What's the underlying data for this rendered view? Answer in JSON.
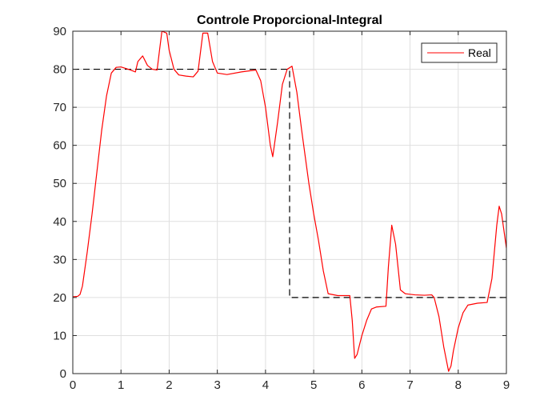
{
  "chart_data": {
    "type": "line",
    "title": "Controle Proporcional-Integral",
    "xlabel": "",
    "ylabel": "",
    "xlim": [
      0,
      9
    ],
    "ylim": [
      0,
      90
    ],
    "xticks": [
      0,
      1,
      2,
      3,
      4,
      5,
      6,
      7,
      8,
      9
    ],
    "yticks": [
      0,
      10,
      20,
      30,
      40,
      50,
      60,
      70,
      80,
      90
    ],
    "grid": true,
    "legend_position": "top-right",
    "series": [
      {
        "name": "Real",
        "color": "#ff0000",
        "style": "solid",
        "points": [
          [
            0,
            20.2
          ],
          [
            0.1,
            20.3
          ],
          [
            0.15,
            20.8
          ],
          [
            0.2,
            23
          ],
          [
            0.3,
            32
          ],
          [
            0.4,
            42
          ],
          [
            0.5,
            53
          ],
          [
            0.6,
            64
          ],
          [
            0.7,
            73
          ],
          [
            0.8,
            79
          ],
          [
            0.9,
            80.5
          ],
          [
            1.0,
            80.6
          ],
          [
            1.1,
            80.2
          ],
          [
            1.2,
            79.8
          ],
          [
            1.3,
            79.3
          ],
          [
            1.35,
            82
          ],
          [
            1.45,
            83.5
          ],
          [
            1.55,
            81
          ],
          [
            1.65,
            80
          ],
          [
            1.75,
            79.8
          ],
          [
            1.8,
            85
          ],
          [
            1.85,
            90
          ],
          [
            1.95,
            89.5
          ],
          [
            2.0,
            85
          ],
          [
            2.1,
            80
          ],
          [
            2.2,
            78.5
          ],
          [
            2.35,
            78.2
          ],
          [
            2.5,
            78
          ],
          [
            2.6,
            79.5
          ],
          [
            2.7,
            89.5
          ],
          [
            2.8,
            89.5
          ],
          [
            2.9,
            82
          ],
          [
            3.0,
            79
          ],
          [
            3.2,
            78.6
          ],
          [
            3.5,
            79.3
          ],
          [
            3.8,
            79.8
          ],
          [
            3.9,
            77
          ],
          [
            4.0,
            70
          ],
          [
            4.1,
            60
          ],
          [
            4.15,
            57
          ],
          [
            4.25,
            66
          ],
          [
            4.35,
            76
          ],
          [
            4.45,
            80
          ],
          [
            4.55,
            80.8
          ],
          [
            4.65,
            74
          ],
          [
            4.75,
            64
          ],
          [
            4.9,
            50
          ],
          [
            5.0,
            42
          ],
          [
            5.1,
            35
          ],
          [
            5.2,
            27
          ],
          [
            5.3,
            21
          ],
          [
            5.5,
            20.5
          ],
          [
            5.75,
            20.5
          ],
          [
            5.8,
            14
          ],
          [
            5.85,
            4
          ],
          [
            5.9,
            5
          ],
          [
            6.0,
            10
          ],
          [
            6.1,
            14
          ],
          [
            6.2,
            17
          ],
          [
            6.3,
            17.5
          ],
          [
            6.5,
            17.7
          ],
          [
            6.55,
            28
          ],
          [
            6.62,
            39
          ],
          [
            6.7,
            34
          ],
          [
            6.8,
            22
          ],
          [
            6.9,
            21
          ],
          [
            7.1,
            20.7
          ],
          [
            7.3,
            20.6
          ],
          [
            7.45,
            20.7
          ],
          [
            7.5,
            20
          ],
          [
            7.6,
            15
          ],
          [
            7.7,
            7
          ],
          [
            7.8,
            0.6
          ],
          [
            7.85,
            2
          ],
          [
            7.9,
            6
          ],
          [
            8.0,
            12
          ],
          [
            8.1,
            16
          ],
          [
            8.2,
            18
          ],
          [
            8.4,
            18.5
          ],
          [
            8.6,
            18.7
          ],
          [
            8.7,
            25
          ],
          [
            8.8,
            39
          ],
          [
            8.85,
            44
          ],
          [
            8.9,
            42
          ],
          [
            9.0,
            33
          ]
        ]
      },
      {
        "name": "",
        "color": "#000000",
        "style": "dashed",
        "points": [
          [
            0,
            80
          ],
          [
            4.5,
            80
          ],
          [
            4.5,
            20
          ],
          [
            9,
            20
          ]
        ]
      }
    ]
  }
}
